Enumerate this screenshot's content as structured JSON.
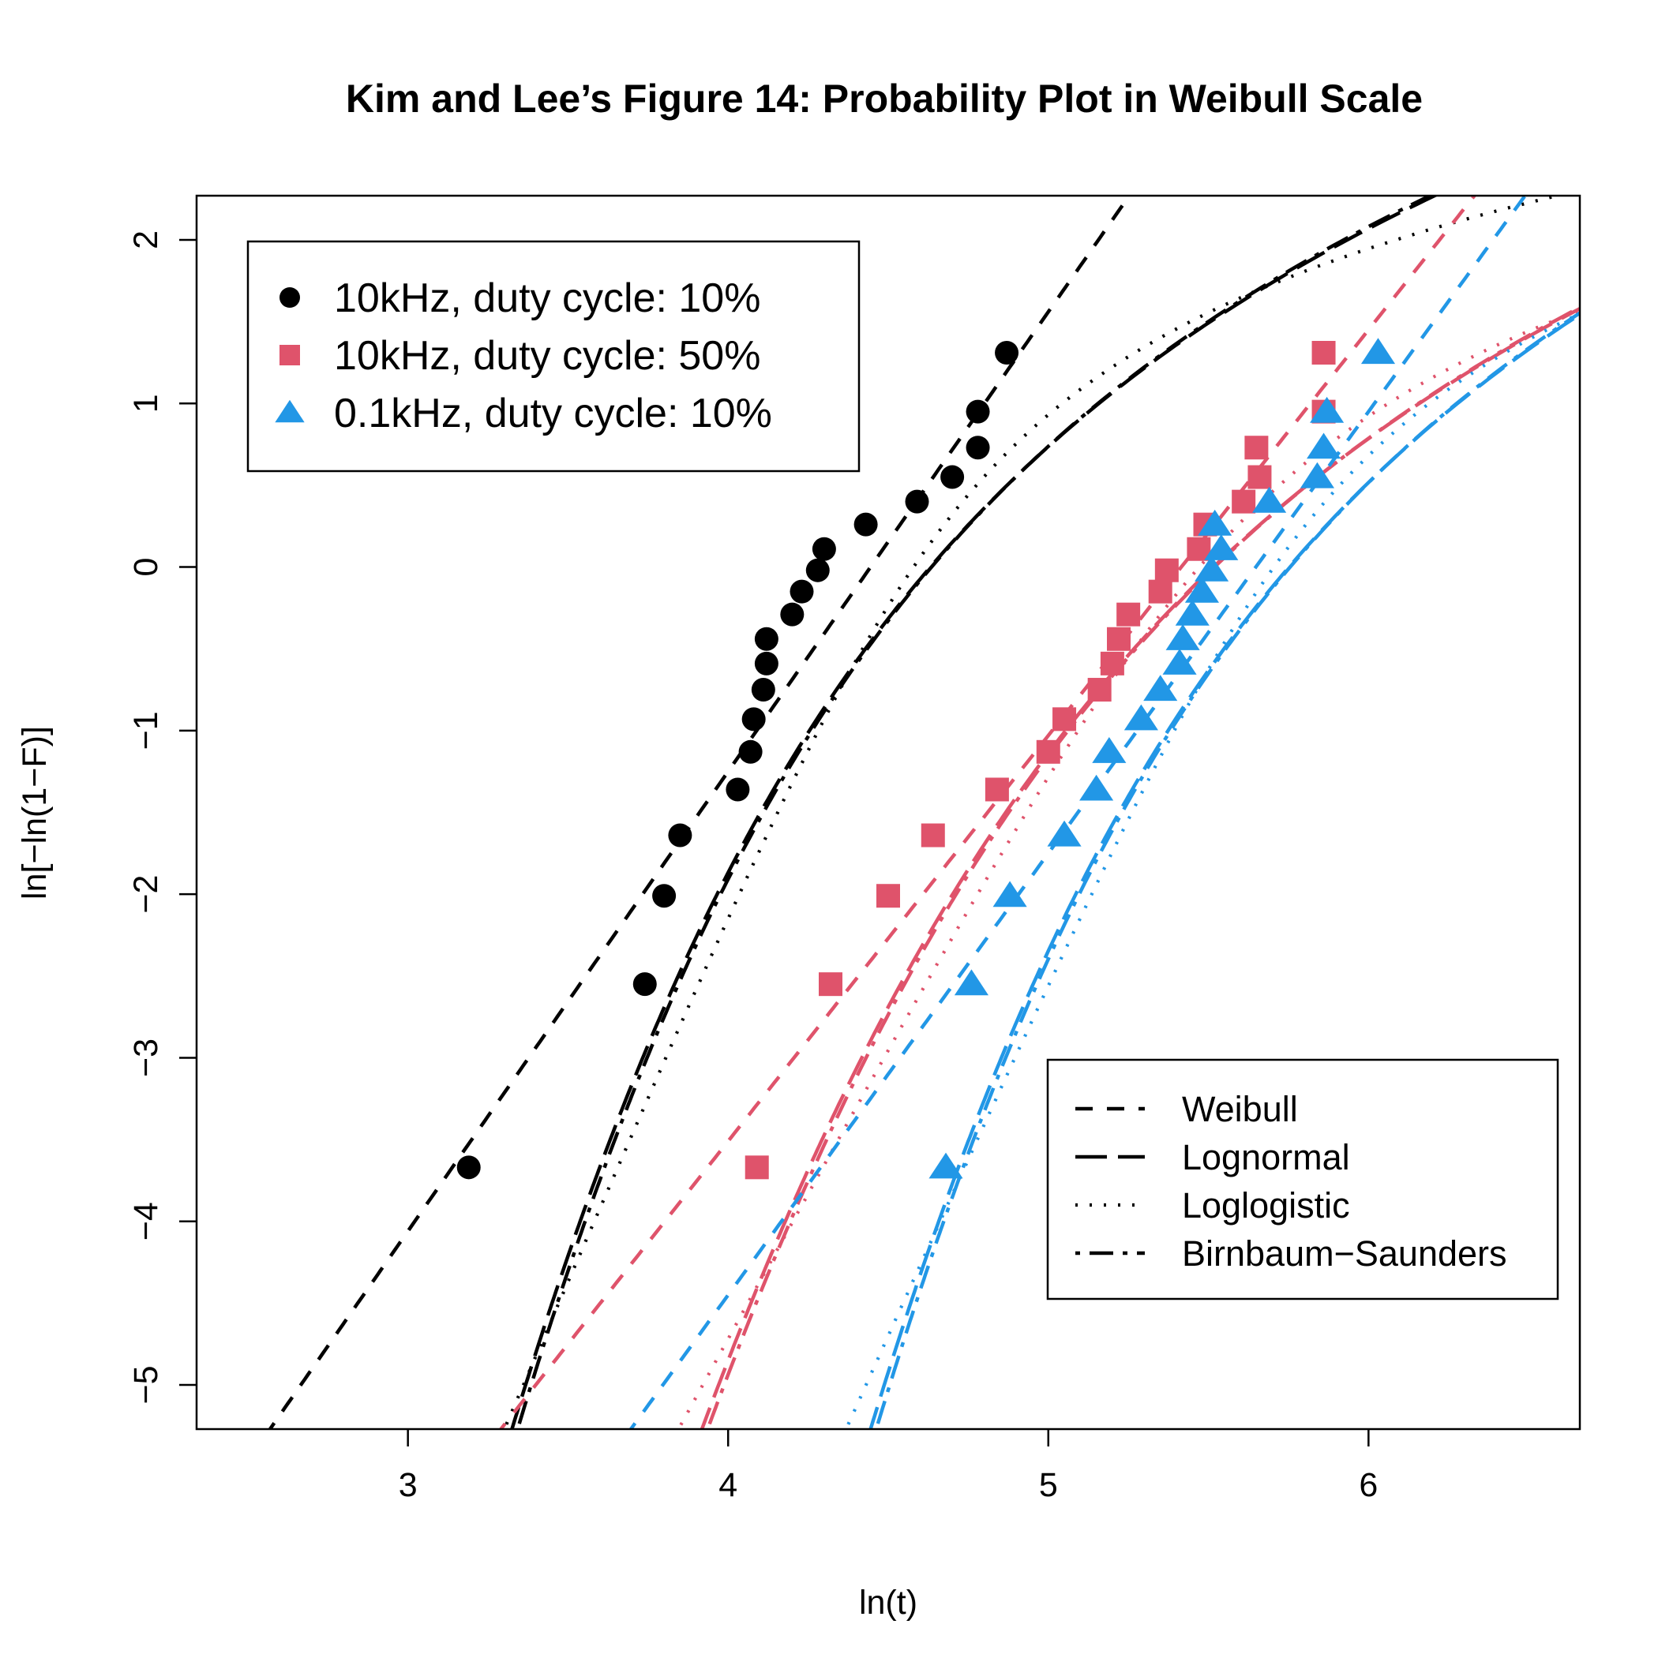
{
  "chart_data": {
    "type": "scatter",
    "title": "Kim and Lee’s Figure 14: Probability Plot in Weibull Scale",
    "xlabel": "ln(t)",
    "ylabel": "ln[−ln(1−F)]",
    "xlim": [
      2.34,
      6.66
    ],
    "ylim": [
      -5.27,
      2.27
    ],
    "xticks": [
      3,
      4,
      5,
      6
    ],
    "yticks": [
      -5,
      -4,
      -3,
      -2,
      -1,
      0,
      1,
      2
    ],
    "xtick_labels": [
      "3",
      "4",
      "5",
      "6"
    ],
    "ytick_labels": [
      "−5",
      "−4",
      "−3",
      "−2",
      "−1",
      "0",
      "1",
      "2"
    ],
    "series": [
      {
        "name": "10kHz, duty cycle: 10%",
        "marker": "circle",
        "color": "#000000",
        "points": [
          [
            3.19,
            -3.67
          ],
          [
            3.74,
            -2.55
          ],
          [
            3.8,
            -2.01
          ],
          [
            3.85,
            -1.64
          ],
          [
            4.03,
            -1.36
          ],
          [
            4.07,
            -1.13
          ],
          [
            4.08,
            -0.93
          ],
          [
            4.11,
            -0.75
          ],
          [
            4.12,
            -0.59
          ],
          [
            4.12,
            -0.44
          ],
          [
            4.2,
            -0.29
          ],
          [
            4.23,
            -0.15
          ],
          [
            4.28,
            -0.02
          ],
          [
            4.3,
            0.11
          ],
          [
            4.43,
            0.26
          ],
          [
            4.59,
            0.4
          ],
          [
            4.7,
            0.55
          ],
          [
            4.78,
            0.73
          ],
          [
            4.78,
            0.95
          ],
          [
            4.87,
            1.31
          ]
        ],
        "fits": {
          "weibull": {
            "a": 2.81,
            "b": -12.49
          },
          "lognormal": {
            "mu": 4.48,
            "sigma": 0.45
          },
          "loglogistic": {
            "mu": 4.46,
            "s": 0.22
          },
          "birnbaum_saunders": {
            "mu": 4.485,
            "sigma": 0.445
          }
        }
      },
      {
        "name": "10kHz, duty cycle: 50%",
        "marker": "square",
        "color": "#DF536B",
        "points": [
          [
            4.09,
            -3.67
          ],
          [
            4.32,
            -2.55
          ],
          [
            4.5,
            -2.01
          ],
          [
            4.64,
            -1.64
          ],
          [
            4.84,
            -1.36
          ],
          [
            5.0,
            -1.13
          ],
          [
            5.05,
            -0.93
          ],
          [
            5.16,
            -0.75
          ],
          [
            5.2,
            -0.59
          ],
          [
            5.22,
            -0.44
          ],
          [
            5.25,
            -0.29
          ],
          [
            5.35,
            -0.15
          ],
          [
            5.37,
            -0.02
          ],
          [
            5.47,
            0.11
          ],
          [
            5.49,
            0.26
          ],
          [
            5.61,
            0.4
          ],
          [
            5.66,
            0.55
          ],
          [
            5.65,
            0.73
          ],
          [
            5.86,
            0.95
          ],
          [
            5.86,
            1.31
          ]
        ],
        "fits": {
          "weibull": {
            "a": 2.48,
            "b": -13.43
          },
          "lognormal": {
            "mu": 5.33,
            "sigma": 0.55
          },
          "loglogistic": {
            "mu": 5.32,
            "s": 0.28
          },
          "birnbaum_saunders": {
            "mu": 5.335,
            "sigma": 0.545
          }
        }
      },
      {
        "name": "0.1kHz, duty cycle: 10%",
        "marker": "triangle",
        "color": "#2297E6",
        "points": [
          [
            4.68,
            -3.67
          ],
          [
            4.76,
            -2.55
          ],
          [
            4.88,
            -2.01
          ],
          [
            5.05,
            -1.64
          ],
          [
            5.15,
            -1.36
          ],
          [
            5.19,
            -1.13
          ],
          [
            5.29,
            -0.93
          ],
          [
            5.35,
            -0.75
          ],
          [
            5.41,
            -0.59
          ],
          [
            5.42,
            -0.44
          ],
          [
            5.45,
            -0.29
          ],
          [
            5.48,
            -0.15
          ],
          [
            5.51,
            -0.02
          ],
          [
            5.54,
            0.11
          ],
          [
            5.52,
            0.26
          ],
          [
            5.69,
            0.4
          ],
          [
            5.84,
            0.55
          ],
          [
            5.86,
            0.73
          ],
          [
            5.87,
            0.95
          ],
          [
            6.03,
            1.31
          ]
        ],
        "fits": {
          "weibull": {
            "a": 2.7,
            "b": -15.25
          },
          "lognormal": {
            "mu": 5.6,
            "sigma": 0.45
          },
          "loglogistic": {
            "mu": 5.58,
            "s": 0.23
          },
          "birnbaum_saunders": {
            "mu": 5.605,
            "sigma": 0.445
          }
        }
      }
    ],
    "line_styles": [
      {
        "name": "Weibull",
        "key": "weibull"
      },
      {
        "name": "Lognormal",
        "key": "lognormal"
      },
      {
        "name": "Loglogistic",
        "key": "loglogistic"
      },
      {
        "name": "Birnbaum−Saunders",
        "key": "birnbaum_saunders"
      }
    ],
    "legend_positions": {
      "series": "top-left",
      "lines": "bottom-right"
    }
  }
}
